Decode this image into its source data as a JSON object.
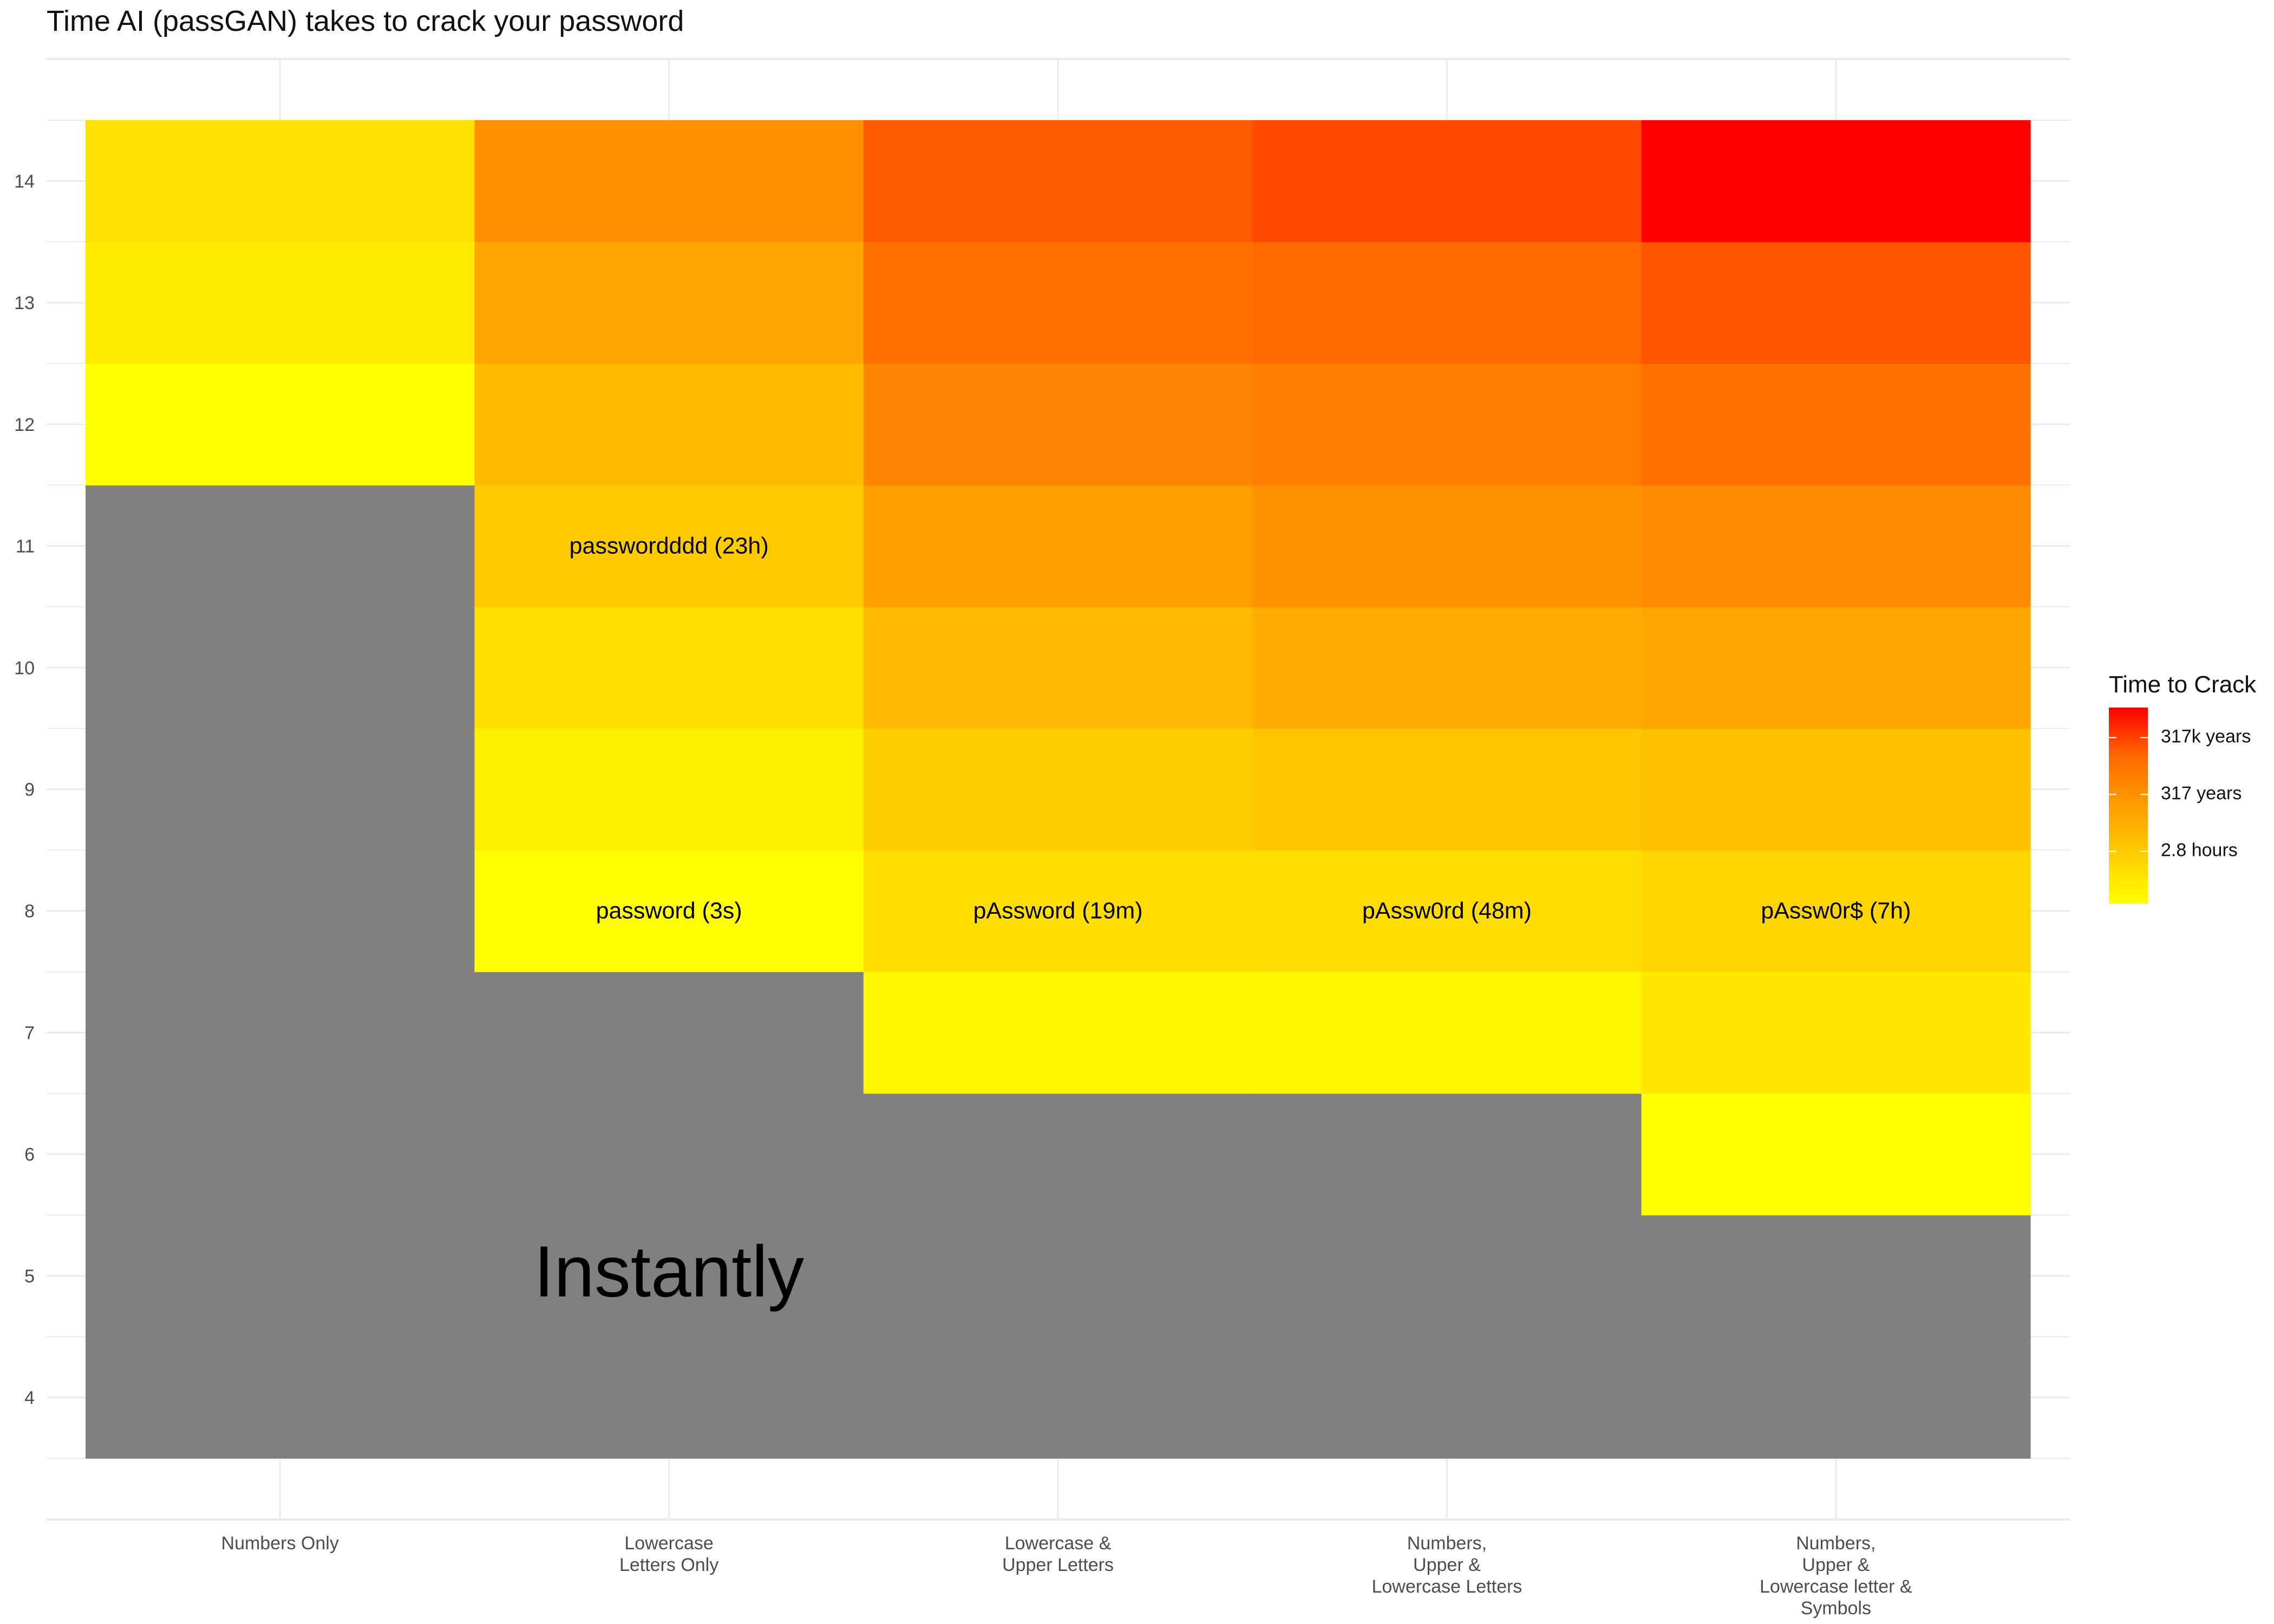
{
  "chart_data": {
    "type": "heatmap",
    "title": "Time AI (passGAN) takes to crack your password",
    "xlabel": "",
    "ylabel": "",
    "categories": [
      "Numbers Only",
      "Lowercase\nLetters Only",
      "Lowercase &\nUpper Letters",
      "Numbers,\nUpper &\nLowercase Letters",
      "Numbers,\nUpper &\nLowercase letter &\nSymbols"
    ],
    "y_values": [
      4,
      5,
      6,
      7,
      8,
      9,
      10,
      11,
      12,
      13,
      14
    ],
    "y_ticks": [
      4,
      5,
      6,
      7,
      8,
      9,
      10,
      11,
      12,
      13,
      14
    ],
    "ylim": [
      3.5,
      14.5
    ],
    "grid": true,
    "instant_color": "#808080",
    "instant_label": "Instantly",
    "cell_colors": [
      [
        "#808080",
        "#808080",
        "#808080",
        "#808080",
        "#808080",
        "#808080",
        "#808080",
        "#808080",
        "#ffff00",
        "#ffea00",
        "#ffe000"
      ],
      [
        "#808080",
        "#808080",
        "#808080",
        "#808080",
        "#ffff00",
        "#fff000",
        "#ffdf00",
        "#ffcb00",
        "#ffbb00",
        "#ffa400",
        "#ff9000"
      ],
      [
        "#808080",
        "#808080",
        "#808080",
        "#fff700",
        "#ffde00",
        "#ffce00",
        "#ffb900",
        "#ff9f00",
        "#ff8600",
        "#ff7000",
        "#ff5a00"
      ],
      [
        "#808080",
        "#808080",
        "#808080",
        "#fff700",
        "#ffdd00",
        "#ffc600",
        "#ffab00",
        "#ff9200",
        "#ff7d00",
        "#ff6a00",
        "#ff4a00"
      ],
      [
        "#808080",
        "#808080",
        "#ffff00",
        "#ffe700",
        "#ffd500",
        "#ffc000",
        "#ffa500",
        "#ff8b00",
        "#ff7000",
        "#ff5600",
        "#ff0000"
      ]
    ],
    "labels": [
      {
        "x": 1,
        "y": 11,
        "text": "passwordddd (23h)"
      },
      {
        "x": 1,
        "y": 8,
        "text": "password (3s)"
      },
      {
        "x": 2,
        "y": 8,
        "text": "pAssword (19m)"
      },
      {
        "x": 3,
        "y": 8,
        "text": "pAssw0rd (48m)"
      },
      {
        "x": 4,
        "y": 8,
        "text": "pAssw0r$ (7h)"
      }
    ],
    "legend": {
      "title": "Time to Crack",
      "position": "right",
      "labels": [
        "317k years",
        "317 years",
        "2.8 hours"
      ],
      "label_levels": [
        0.85,
        0.56,
        0.27
      ],
      "low_color": "#ffff00",
      "high_color": "#ff0000"
    }
  }
}
